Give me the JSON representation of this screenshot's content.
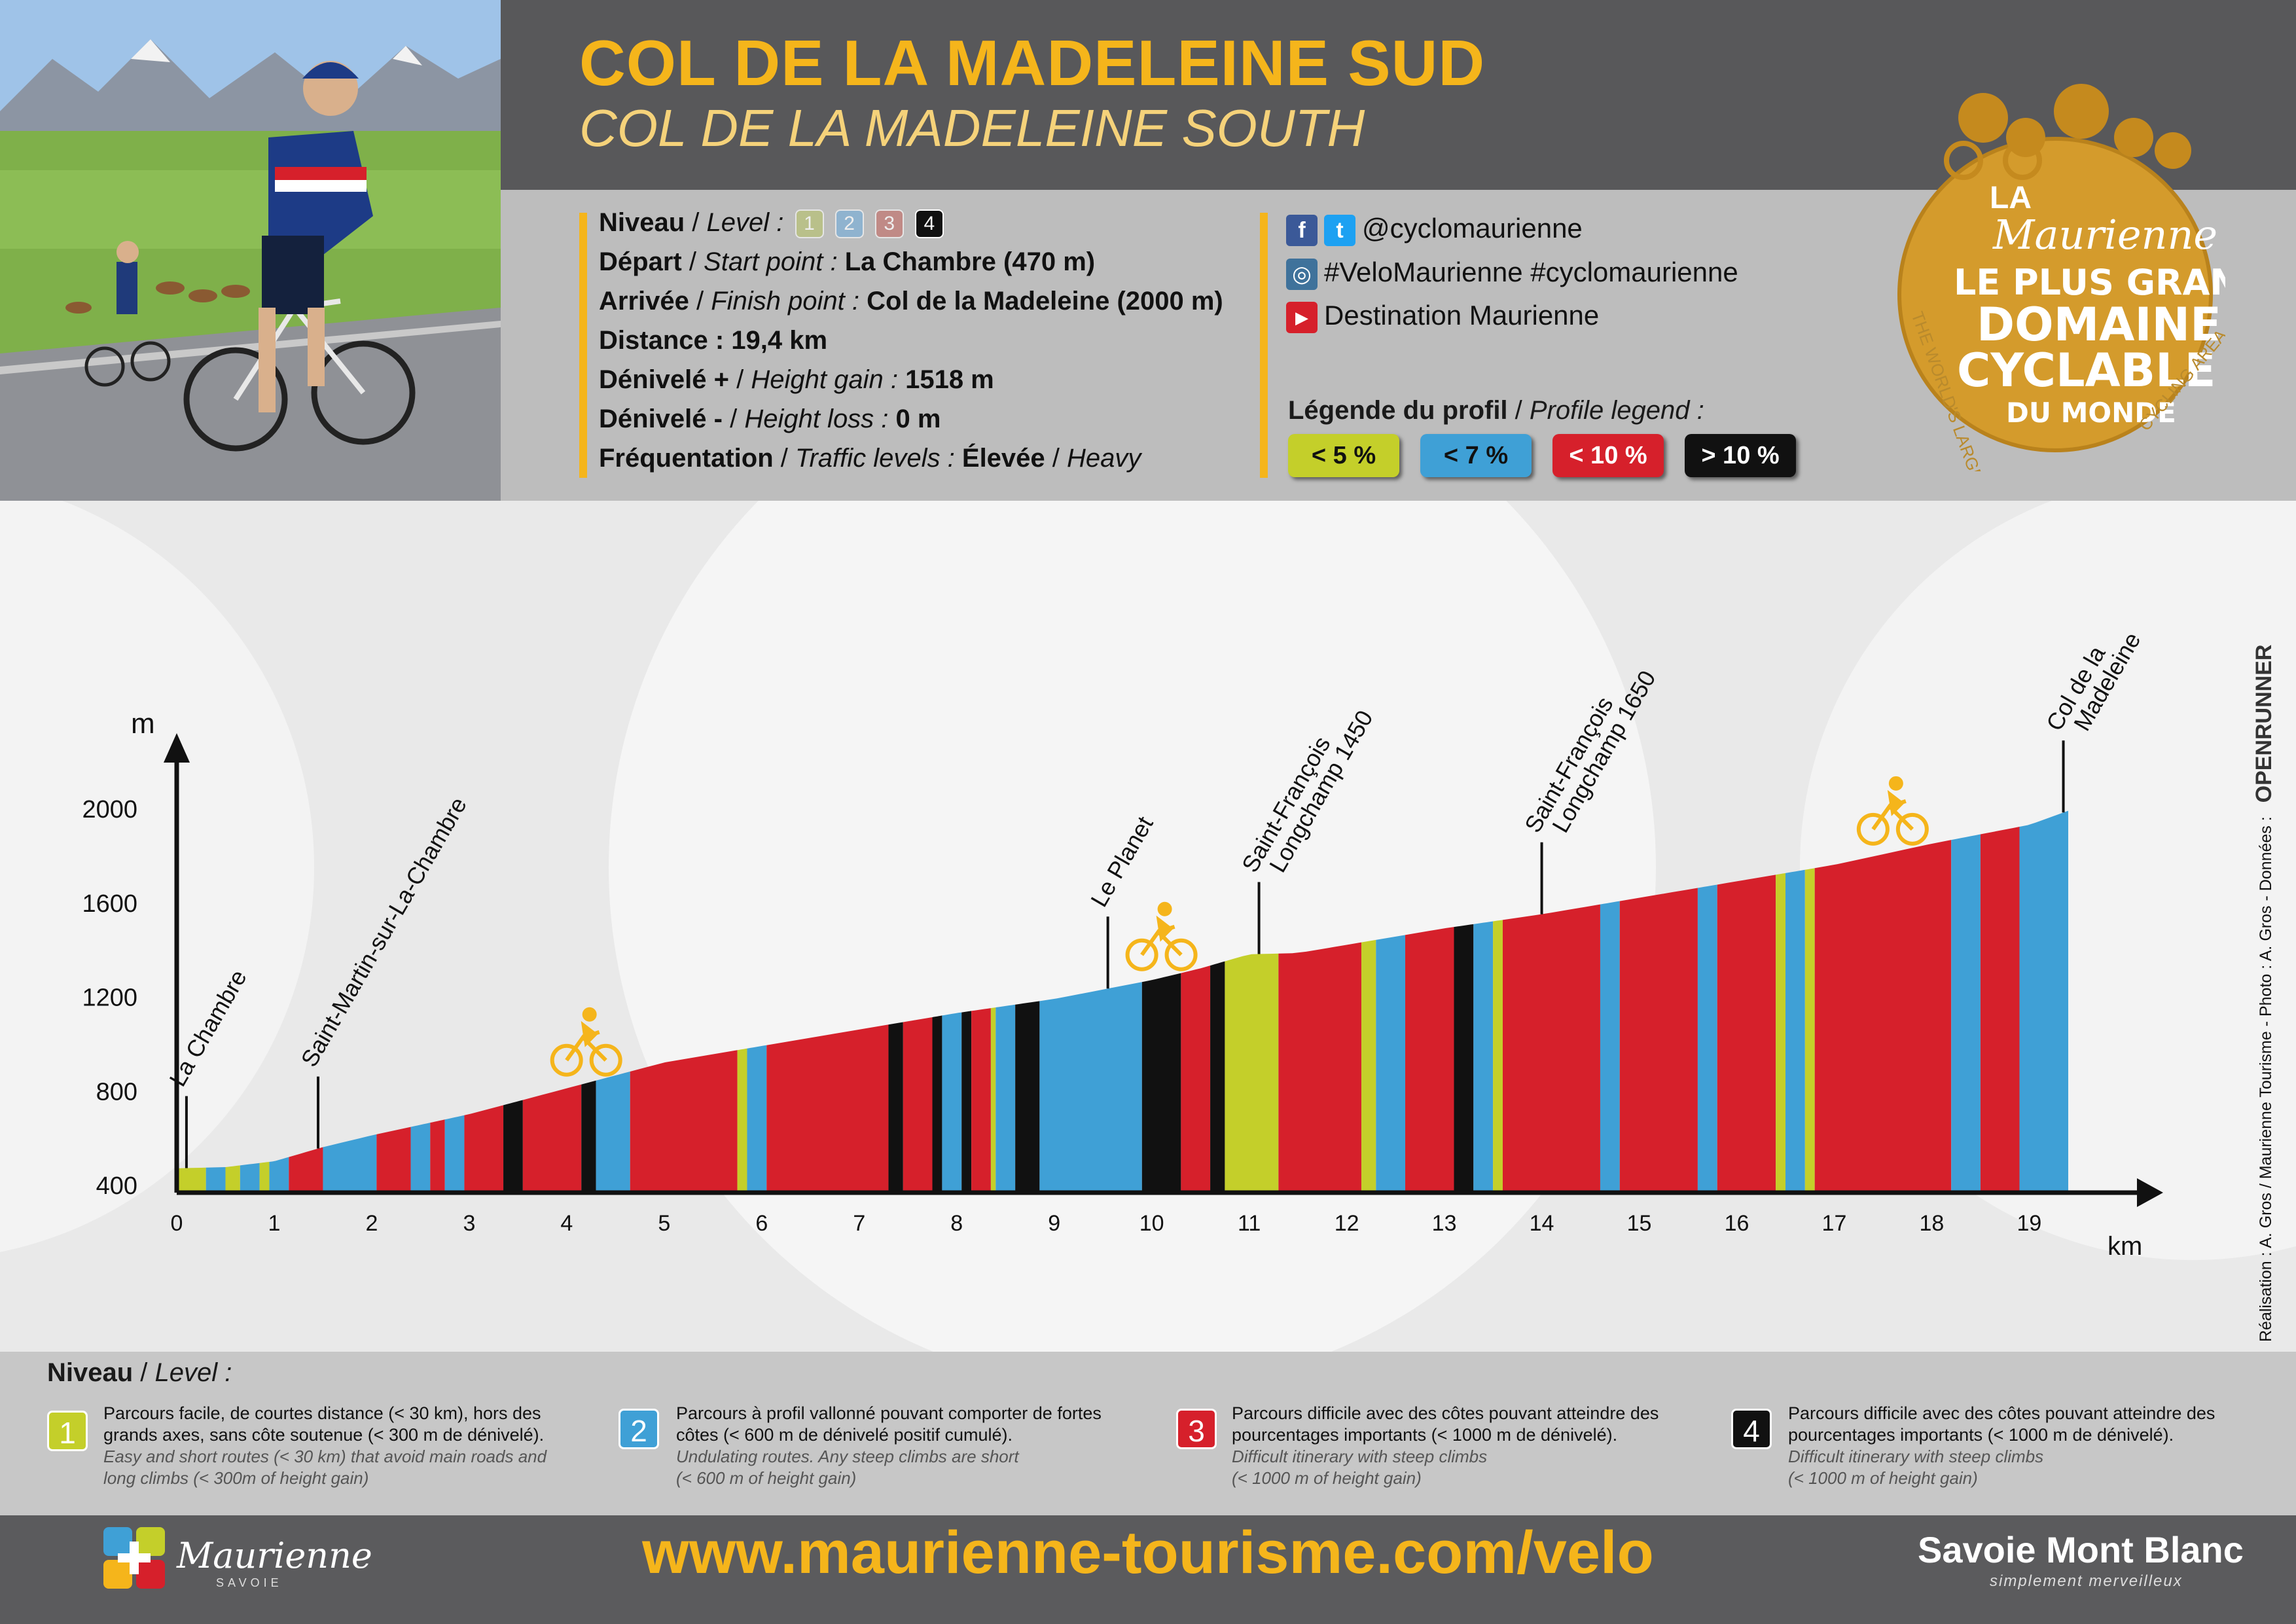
{
  "title": {
    "main": "COL DE LA MADELEINE SUD",
    "sub": "COL DE LA MADELEINE SOUTH"
  },
  "info": {
    "niveau_label": "Niveau",
    "level_label": "Level :",
    "levels": [
      "1",
      "2",
      "3",
      "4"
    ],
    "selected_level": "4",
    "depart_label": "Départ",
    "start_label": "Start point :",
    "depart_value": "La Chambre (470 m)",
    "arrivee_label": "Arrivée",
    "finish_label": "Finish point :",
    "arrivee_value": "Col de la Madeleine (2000 m)",
    "distance_label": "Distance :",
    "distance_value": "19,4 km",
    "gain_label": "Dénivelé +",
    "gain_en_label": "Height gain :",
    "gain_value": "1518 m",
    "loss_label": "Dénivelé -",
    "loss_en_label": "Height loss :",
    "loss_value": "0 m",
    "traffic_label": "Fréquentation",
    "traffic_en_label": "Traffic levels :",
    "traffic_value": "Élevée",
    "traffic_en_value": "Heavy"
  },
  "social": {
    "handle": "@cyclomaurienne",
    "hashtags": "#VeloMaurienne #cyclomaurienne",
    "youtube": "Destination Maurienne",
    "fb_icon": "f",
    "tw_icon": "t",
    "ig_icon": "◎",
    "yt_icon": "▶"
  },
  "legend": {
    "title_fr": "Légende du profil",
    "title_en": "Profile legend :",
    "items": [
      {
        "label": "< 5 %",
        "color": "#c4cf2a",
        "text": "#111111"
      },
      {
        "label": "< 7 %",
        "color": "#3fa0d6",
        "text": "#111111"
      },
      {
        "label": "< 10 %",
        "color": "#d6202b",
        "text": "#ffffff"
      },
      {
        "label": "> 10 %",
        "color": "#111111",
        "text": "#ffffff"
      }
    ]
  },
  "logo": {
    "la": "LA",
    "maurienne": "Maurienne",
    "line1": "LE PLUS GRAND",
    "line2": "DOMAINE",
    "line3": "CYCLABLE",
    "line4": "DU MONDE",
    "ring_left": "THE WORLD'S LARGEST",
    "ring_right": "CYCLING AREA"
  },
  "chart_data": {
    "type": "area",
    "title": "COL DE LA MADELEINE SUD",
    "xlabel": "km",
    "ylabel": "m",
    "xlim": [
      0,
      19.4
    ],
    "ylim": [
      400,
      2000
    ],
    "x_ticks": [
      "0",
      "1",
      "2",
      "3",
      "4",
      "5",
      "6",
      "7",
      "8",
      "9",
      "10",
      "11",
      "12",
      "13",
      "14",
      "15",
      "16",
      "17",
      "18",
      "19"
    ],
    "y_ticks": [
      "400",
      "800",
      "1200",
      "1600",
      "2000"
    ],
    "profile": {
      "x": [
        0,
        0.5,
        1,
        1.5,
        2,
        3,
        4,
        5,
        6,
        7,
        8,
        9,
        10,
        10.5,
        11,
        11.5,
        12,
        13,
        14,
        15,
        16,
        17,
        18,
        19,
        19.4
      ],
      "y": [
        470,
        475,
        500,
        560,
        610,
        700,
        810,
        920,
        990,
        1060,
        1130,
        1190,
        1270,
        1320,
        1380,
        1385,
        1420,
        1490,
        1550,
        1620,
        1690,
        1760,
        1850,
        1930,
        1990
      ]
    },
    "segments": [
      {
        "from": 0,
        "to": 0.3,
        "grade": "<5"
      },
      {
        "from": 0.3,
        "to": 0.5,
        "grade": "<7"
      },
      {
        "from": 0.5,
        "to": 0.65,
        "grade": "<5"
      },
      {
        "from": 0.65,
        "to": 0.85,
        "grade": "<7"
      },
      {
        "from": 0.85,
        "to": 0.95,
        "grade": "<5"
      },
      {
        "from": 0.95,
        "to": 1.15,
        "grade": "<7"
      },
      {
        "from": 1.15,
        "to": 1.5,
        "grade": "<10"
      },
      {
        "from": 1.5,
        "to": 2.05,
        "grade": "<7"
      },
      {
        "from": 2.05,
        "to": 2.4,
        "grade": "<10"
      },
      {
        "from": 2.4,
        "to": 2.6,
        "grade": "<7"
      },
      {
        "from": 2.6,
        "to": 2.75,
        "grade": "<10"
      },
      {
        "from": 2.75,
        "to": 2.95,
        "grade": "<7"
      },
      {
        "from": 2.95,
        "to": 3.35,
        "grade": "<10"
      },
      {
        "from": 3.35,
        "to": 3.55,
        "grade": ">10"
      },
      {
        "from": 3.55,
        "to": 4.15,
        "grade": "<10"
      },
      {
        "from": 4.15,
        "to": 4.3,
        "grade": ">10"
      },
      {
        "from": 4.3,
        "to": 4.65,
        "grade": "<7"
      },
      {
        "from": 4.65,
        "to": 5.75,
        "grade": "<10"
      },
      {
        "from": 5.75,
        "to": 5.85,
        "grade": "<5"
      },
      {
        "from": 5.85,
        "to": 6.05,
        "grade": "<7"
      },
      {
        "from": 6.05,
        "to": 7.3,
        "grade": "<10"
      },
      {
        "from": 7.3,
        "to": 7.45,
        "grade": ">10"
      },
      {
        "from": 7.45,
        "to": 7.75,
        "grade": "<10"
      },
      {
        "from": 7.75,
        "to": 7.85,
        "grade": ">10"
      },
      {
        "from": 7.85,
        "to": 8.05,
        "grade": "<7"
      },
      {
        "from": 8.05,
        "to": 8.15,
        "grade": ">10"
      },
      {
        "from": 8.15,
        "to": 8.35,
        "grade": "<10"
      },
      {
        "from": 8.35,
        "to": 8.4,
        "grade": "<5"
      },
      {
        "from": 8.4,
        "to": 8.6,
        "grade": "<7"
      },
      {
        "from": 8.6,
        "to": 8.85,
        "grade": ">10"
      },
      {
        "from": 8.85,
        "to": 9.9,
        "grade": "<7"
      },
      {
        "from": 9.9,
        "to": 10.3,
        "grade": ">10"
      },
      {
        "from": 10.3,
        "to": 10.6,
        "grade": "<10"
      },
      {
        "from": 10.6,
        "to": 10.75,
        "grade": ">10"
      },
      {
        "from": 10.75,
        "to": 11.3,
        "grade": "<5"
      },
      {
        "from": 11.3,
        "to": 12.15,
        "grade": "<10"
      },
      {
        "from": 12.15,
        "to": 12.3,
        "grade": "<5"
      },
      {
        "from": 12.3,
        "to": 12.6,
        "grade": "<7"
      },
      {
        "from": 12.6,
        "to": 13.1,
        "grade": "<10"
      },
      {
        "from": 13.1,
        "to": 13.3,
        "grade": ">10"
      },
      {
        "from": 13.3,
        "to": 13.5,
        "grade": "<7"
      },
      {
        "from": 13.5,
        "to": 13.6,
        "grade": "<5"
      },
      {
        "from": 13.6,
        "to": 14.6,
        "grade": "<10"
      },
      {
        "from": 14.6,
        "to": 14.8,
        "grade": "<7"
      },
      {
        "from": 14.8,
        "to": 15.6,
        "grade": "<10"
      },
      {
        "from": 15.6,
        "to": 15.8,
        "grade": "<7"
      },
      {
        "from": 15.8,
        "to": 16.4,
        "grade": "<10"
      },
      {
        "from": 16.4,
        "to": 16.5,
        "grade": "<5"
      },
      {
        "from": 16.5,
        "to": 16.7,
        "grade": "<7"
      },
      {
        "from": 16.7,
        "to": 16.8,
        "grade": "<5"
      },
      {
        "from": 16.8,
        "to": 18.2,
        "grade": "<10"
      },
      {
        "from": 18.2,
        "to": 18.5,
        "grade": "<7"
      },
      {
        "from": 18.5,
        "to": 18.9,
        "grade": "<10"
      },
      {
        "from": 18.9,
        "to": 19.4,
        "grade": "<7"
      }
    ],
    "grade_colors": {
      "<5": "#c4cf2a",
      "<7": "#3fa0d6",
      "<10": "#d6202b",
      ">10": "#111111"
    },
    "annotations": [
      {
        "x": 0.1,
        "lines": [
          "La Chambre"
        ]
      },
      {
        "x": 1.45,
        "lines": [
          "Saint-Martin-sur-La-Chambre"
        ]
      },
      {
        "x": 9.55,
        "lines": [
          "Le Planet"
        ]
      },
      {
        "x": 11.1,
        "lines": [
          "Saint-François",
          "Longchamp 1450"
        ]
      },
      {
        "x": 14.0,
        "lines": [
          "Saint-François",
          "Longchamp 1650"
        ]
      },
      {
        "x": 19.35,
        "lines": [
          "Col de la",
          "Madeleine"
        ]
      }
    ],
    "cyclists_at_km": [
      4.2,
      10.1,
      17.6
    ]
  },
  "levels_band": {
    "title_fr": "Niveau",
    "title_en": "Level :",
    "items": [
      {
        "num": "1",
        "color": "#c4cf2a",
        "fr": [
          "Parcours facile, de courtes distance (< 30 km), hors des",
          "grands axes, sans côte soutenue (< 300 m de dénivelé)."
        ],
        "en": [
          "Easy and short routes (< 30 km) that avoid main roads and",
          "long climbs (< 300m of height gain)"
        ]
      },
      {
        "num": "2",
        "color": "#3fa0d6",
        "fr": [
          "Parcours à profil vallonné pouvant comporter de fortes",
          "côtes (< 600 m de dénivelé positif cumulé)."
        ],
        "en": [
          "Undulating routes. Any steep climbs are short",
          "(< 600 m of height gain)"
        ]
      },
      {
        "num": "3",
        "color": "#d6202b",
        "fr": [
          "Parcours difficile avec des côtes pouvant atteindre des",
          "pourcentages importants (< 1000 m de dénivelé)."
        ],
        "en": [
          "Difficult itinerary with steep climbs",
          "(< 1000 m of height gain)"
        ]
      },
      {
        "num": "4",
        "color": "#111111",
        "fr": [
          "Parcours difficile avec des côtes pouvant atteindre des",
          "pourcentages importants (< 1000 m de dénivelé)."
        ],
        "en": [
          "Difficult itinerary with steep climbs",
          "(< 1000 m of height gain)"
        ]
      }
    ]
  },
  "footer": {
    "url": "www.maurienne-tourisme.com/velo",
    "maurienne_logo": "Maurienne",
    "maurienne_sub": "SAVOIE",
    "savoie": "Savoie Mont Blanc",
    "savoie_sub": "simplement merveilleux"
  },
  "credits": "Réalisation : A. Gros / Maurienne Tourisme - Photo : A. Gros - Données :",
  "openrunner": "OPENRUNNER"
}
